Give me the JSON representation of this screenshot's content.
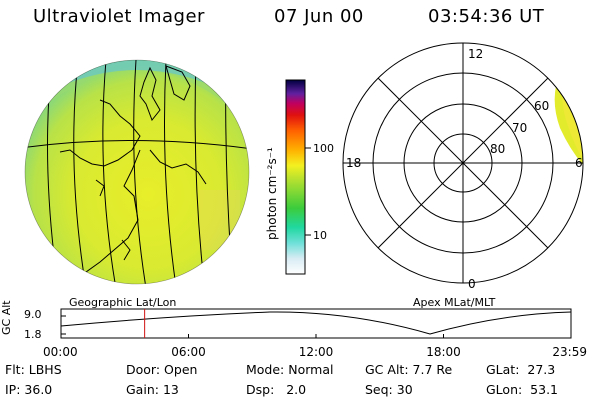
{
  "header": {
    "title": "Ultraviolet Imager",
    "date": "07 Jun 00",
    "time": "03:54:36 UT"
  },
  "colorbar": {
    "unit_label": "photon cm⁻²s⁻¹",
    "tick_100": "100",
    "tick_10": "10"
  },
  "polar": {
    "mlt_12": "12",
    "mlt_18": "18",
    "mlt_6": "6",
    "mlt_0": "0",
    "lat_60": "60",
    "lat_70": "70",
    "lat_80": "80"
  },
  "map_labels": {
    "left": "Geographic Lat/Lon",
    "right": "Apex MLat/MLT"
  },
  "timeline": {
    "y_title": "GC Alt",
    "y_top": "9.0",
    "y_bottom": "1.8",
    "ticks": [
      "00:00",
      "06:00",
      "12:00",
      "18:00",
      "23:59"
    ],
    "current_marker_fraction": 0.164
  },
  "info": {
    "flt_label": "Flt:",
    "flt_value": "LBHS",
    "ip_label": "IP:",
    "ip_value": "36.0",
    "door_label": "Door:",
    "door_value": "Open",
    "gain_label": "Gain:",
    "gain_value": "13",
    "mode_label": "Mode:",
    "mode_value": "Normal",
    "dsp_label": "Dsp:",
    "dsp_value": "2.0",
    "gcalt_label": "GC Alt:",
    "gcalt_value": "7.7 Re",
    "seq_label": "Seq:",
    "seq_value": "30",
    "glat_label": "GLat:",
    "glat_value": "27.3",
    "glon_label": "GLon:",
    "glon_value": "53.1"
  },
  "colors": {
    "earth_main": "#e2ec2c",
    "earth_edge": "#a8e05a",
    "limb": "#7ec8b0",
    "marker": "#d01010"
  }
}
